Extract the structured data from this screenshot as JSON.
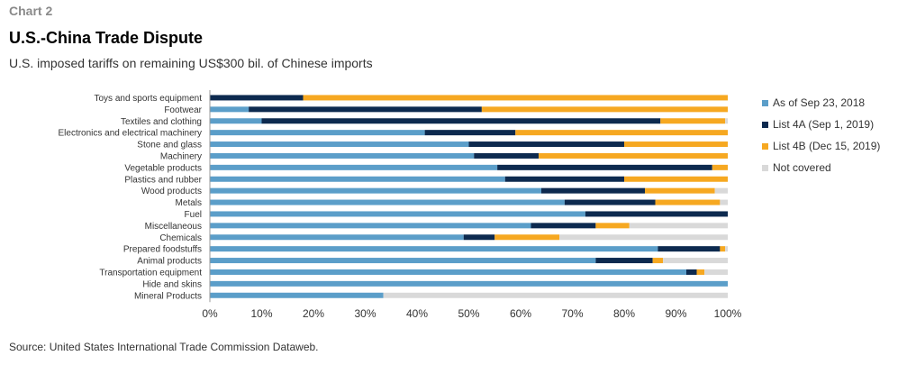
{
  "header": {
    "chart_label": "Chart 2",
    "title": "U.S.-China Trade Dispute",
    "subtitle": "U.S. imposed tariffs on remaining US$300 bil. of Chinese imports"
  },
  "footer": {
    "source": "Source: United States International Trade Commission Dataweb."
  },
  "chart_data": {
    "type": "bar",
    "orientation": "horizontal",
    "stacked": true,
    "title": "U.S.-China Trade Dispute",
    "subtitle": "U.S. imposed tariffs on remaining US$300 bil. of Chinese imports",
    "xlim": [
      0,
      100
    ],
    "x_ticks": [
      "0%",
      "10%",
      "20%",
      "30%",
      "40%",
      "50%",
      "60%",
      "70%",
      "80%",
      "90%",
      "100%"
    ],
    "legend_position": "right",
    "grid": false,
    "categories": [
      "Toys and sports equipment",
      "Footwear",
      "Textiles and clothing",
      "Electronics and electrical machinery",
      "Stone and glass",
      "Machinery",
      "Vegetable products",
      "Plastics and rubber",
      "Wood products",
      "Metals",
      "Fuel",
      "Miscellaneous",
      "Chemicals",
      "Prepared foodstuffs",
      "Animal products",
      "Transportation equipment",
      "Hide and skins",
      "Mineral Products"
    ],
    "series": [
      {
        "name": "As of Sep 23, 2018",
        "color": "#5b9ec9",
        "values": [
          0,
          7.5,
          10,
          41.5,
          50,
          51,
          55.5,
          57,
          64,
          68.5,
          72.5,
          62,
          49,
          86.5,
          74.5,
          92,
          100,
          33.5
        ]
      },
      {
        "name": "List 4A (Sep 1, 2019)",
        "color": "#0d2a4f",
        "values": [
          18,
          45,
          77,
          17.5,
          30,
          12.5,
          41.5,
          23,
          20,
          17.5,
          27.5,
          12.5,
          6,
          12,
          11,
          2,
          0,
          0
        ]
      },
      {
        "name": "List 4B (Dec 15, 2019)",
        "color": "#f6a821",
        "values": [
          82,
          47.5,
          12.5,
          41,
          20,
          36.5,
          3,
          20,
          13.5,
          12.5,
          0,
          6.5,
          12.5,
          1,
          2,
          1.5,
          0,
          0
        ]
      },
      {
        "name": "Not covered",
        "color": "#d9d9d9",
        "values": [
          0,
          0,
          0.5,
          0,
          0,
          0,
          0,
          0,
          2.5,
          1.5,
          0,
          19,
          32.5,
          0.5,
          12.5,
          4.5,
          0,
          66.5
        ]
      }
    ]
  }
}
